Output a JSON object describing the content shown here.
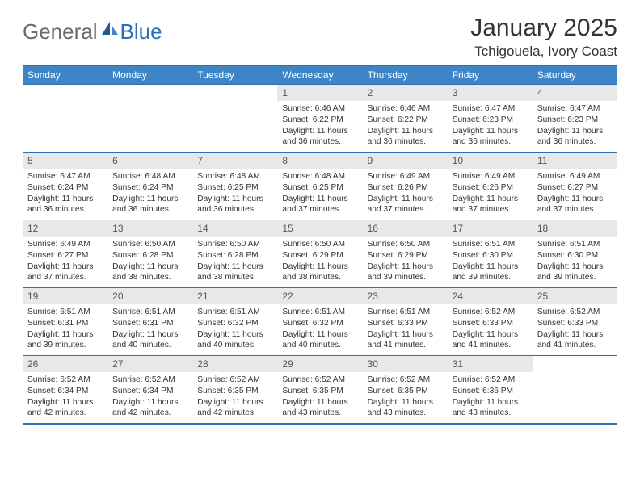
{
  "logo": {
    "text1": "General",
    "text2": "Blue"
  },
  "title": "January 2025",
  "location": "Tchigouela, Ivory Coast",
  "colors": {
    "header_bg": "#3d85c6",
    "border": "#2c6fb5",
    "daynum_bg": "#e8e8e8",
    "logo_gray": "#6b6b6b",
    "logo_blue": "#2c6fb5"
  },
  "weekdays": [
    "Sunday",
    "Monday",
    "Tuesday",
    "Wednesday",
    "Thursday",
    "Friday",
    "Saturday"
  ],
  "weeks": [
    [
      null,
      null,
      null,
      {
        "n": "1",
        "sr": "6:46 AM",
        "ss": "6:22 PM",
        "dl": "11 hours and 36 minutes."
      },
      {
        "n": "2",
        "sr": "6:46 AM",
        "ss": "6:22 PM",
        "dl": "11 hours and 36 minutes."
      },
      {
        "n": "3",
        "sr": "6:47 AM",
        "ss": "6:23 PM",
        "dl": "11 hours and 36 minutes."
      },
      {
        "n": "4",
        "sr": "6:47 AM",
        "ss": "6:23 PM",
        "dl": "11 hours and 36 minutes."
      }
    ],
    [
      {
        "n": "5",
        "sr": "6:47 AM",
        "ss": "6:24 PM",
        "dl": "11 hours and 36 minutes."
      },
      {
        "n": "6",
        "sr": "6:48 AM",
        "ss": "6:24 PM",
        "dl": "11 hours and 36 minutes."
      },
      {
        "n": "7",
        "sr": "6:48 AM",
        "ss": "6:25 PM",
        "dl": "11 hours and 36 minutes."
      },
      {
        "n": "8",
        "sr": "6:48 AM",
        "ss": "6:25 PM",
        "dl": "11 hours and 37 minutes."
      },
      {
        "n": "9",
        "sr": "6:49 AM",
        "ss": "6:26 PM",
        "dl": "11 hours and 37 minutes."
      },
      {
        "n": "10",
        "sr": "6:49 AM",
        "ss": "6:26 PM",
        "dl": "11 hours and 37 minutes."
      },
      {
        "n": "11",
        "sr": "6:49 AM",
        "ss": "6:27 PM",
        "dl": "11 hours and 37 minutes."
      }
    ],
    [
      {
        "n": "12",
        "sr": "6:49 AM",
        "ss": "6:27 PM",
        "dl": "11 hours and 37 minutes."
      },
      {
        "n": "13",
        "sr": "6:50 AM",
        "ss": "6:28 PM",
        "dl": "11 hours and 38 minutes."
      },
      {
        "n": "14",
        "sr": "6:50 AM",
        "ss": "6:28 PM",
        "dl": "11 hours and 38 minutes."
      },
      {
        "n": "15",
        "sr": "6:50 AM",
        "ss": "6:29 PM",
        "dl": "11 hours and 38 minutes."
      },
      {
        "n": "16",
        "sr": "6:50 AM",
        "ss": "6:29 PM",
        "dl": "11 hours and 39 minutes."
      },
      {
        "n": "17",
        "sr": "6:51 AM",
        "ss": "6:30 PM",
        "dl": "11 hours and 39 minutes."
      },
      {
        "n": "18",
        "sr": "6:51 AM",
        "ss": "6:30 PM",
        "dl": "11 hours and 39 minutes."
      }
    ],
    [
      {
        "n": "19",
        "sr": "6:51 AM",
        "ss": "6:31 PM",
        "dl": "11 hours and 39 minutes."
      },
      {
        "n": "20",
        "sr": "6:51 AM",
        "ss": "6:31 PM",
        "dl": "11 hours and 40 minutes."
      },
      {
        "n": "21",
        "sr": "6:51 AM",
        "ss": "6:32 PM",
        "dl": "11 hours and 40 minutes."
      },
      {
        "n": "22",
        "sr": "6:51 AM",
        "ss": "6:32 PM",
        "dl": "11 hours and 40 minutes."
      },
      {
        "n": "23",
        "sr": "6:51 AM",
        "ss": "6:33 PM",
        "dl": "11 hours and 41 minutes."
      },
      {
        "n": "24",
        "sr": "6:52 AM",
        "ss": "6:33 PM",
        "dl": "11 hours and 41 minutes."
      },
      {
        "n": "25",
        "sr": "6:52 AM",
        "ss": "6:33 PM",
        "dl": "11 hours and 41 minutes."
      }
    ],
    [
      {
        "n": "26",
        "sr": "6:52 AM",
        "ss": "6:34 PM",
        "dl": "11 hours and 42 minutes."
      },
      {
        "n": "27",
        "sr": "6:52 AM",
        "ss": "6:34 PM",
        "dl": "11 hours and 42 minutes."
      },
      {
        "n": "28",
        "sr": "6:52 AM",
        "ss": "6:35 PM",
        "dl": "11 hours and 42 minutes."
      },
      {
        "n": "29",
        "sr": "6:52 AM",
        "ss": "6:35 PM",
        "dl": "11 hours and 43 minutes."
      },
      {
        "n": "30",
        "sr": "6:52 AM",
        "ss": "6:35 PM",
        "dl": "11 hours and 43 minutes."
      },
      {
        "n": "31",
        "sr": "6:52 AM",
        "ss": "6:36 PM",
        "dl": "11 hours and 43 minutes."
      },
      null
    ]
  ],
  "labels": {
    "sunrise": "Sunrise:",
    "sunset": "Sunset:",
    "daylight": "Daylight:"
  }
}
